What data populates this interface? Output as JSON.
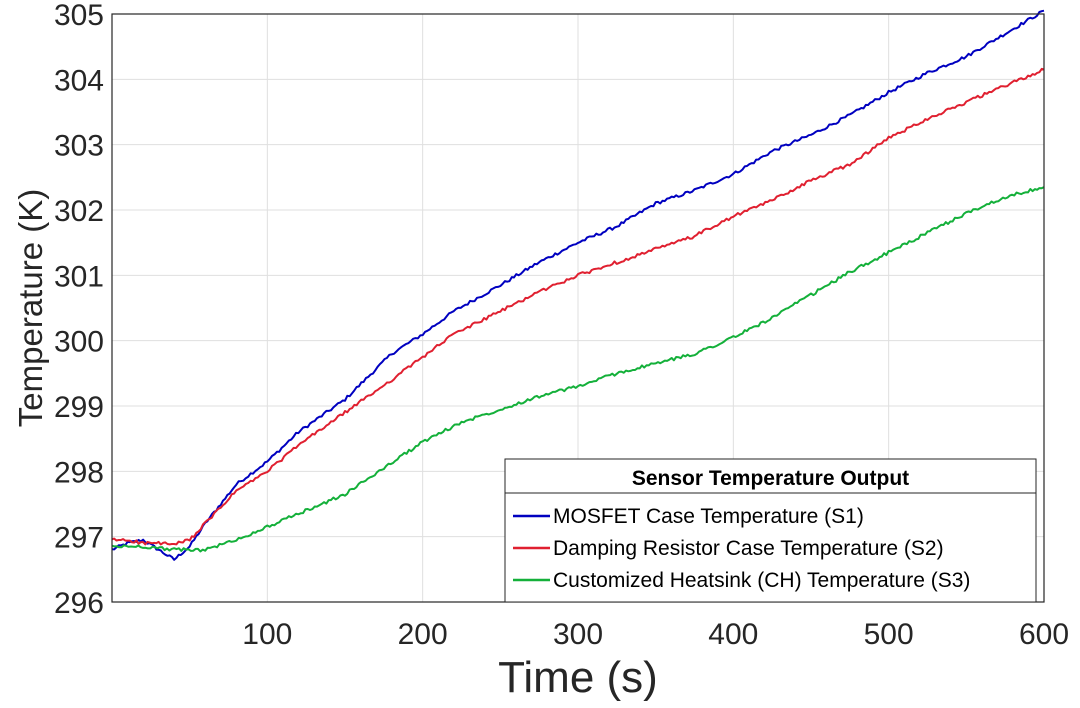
{
  "chart_data": {
    "type": "line",
    "title": "",
    "xlabel": "Time (s)",
    "ylabel": "Temperature (K)",
    "xlim": [
      0,
      600
    ],
    "ylim": [
      296,
      305
    ],
    "xticks": [
      100,
      200,
      300,
      400,
      500,
      600
    ],
    "yticks": [
      296,
      297,
      298,
      299,
      300,
      301,
      302,
      303,
      304,
      305
    ],
    "grid": true,
    "legend": {
      "title": "Sensor Temperature Output",
      "location": "bottom-right"
    },
    "series": [
      {
        "name": "MOSFET Case Temperature (S1)",
        "color": "#0000c0",
        "x": [
          0,
          10,
          20,
          30,
          40,
          50,
          60,
          70,
          80,
          100,
          120,
          150,
          180,
          200,
          220,
          250,
          275,
          300,
          325,
          350,
          375,
          400,
          425,
          450,
          475,
          500,
          525,
          550,
          575,
          600
        ],
        "y": [
          296.8,
          296.9,
          296.95,
          296.8,
          296.65,
          296.85,
          297.2,
          297.5,
          297.8,
          298.15,
          298.6,
          299.1,
          299.8,
          300.1,
          300.45,
          300.85,
          301.2,
          301.5,
          301.75,
          302.1,
          302.3,
          302.55,
          302.9,
          303.15,
          303.45,
          303.8,
          304.1,
          304.35,
          304.7,
          305.05
        ]
      },
      {
        "name": "Damping Resistor Case Temperature (S2)",
        "color": "#e02030",
        "x": [
          0,
          10,
          20,
          30,
          40,
          50,
          60,
          70,
          80,
          100,
          120,
          150,
          180,
          200,
          220,
          250,
          275,
          300,
          325,
          350,
          375,
          400,
          425,
          450,
          475,
          500,
          525,
          550,
          575,
          600
        ],
        "y": [
          296.95,
          296.95,
          296.9,
          296.9,
          296.88,
          296.95,
          297.2,
          297.45,
          297.7,
          298.0,
          298.4,
          298.9,
          299.4,
          299.75,
          300.1,
          300.45,
          300.75,
          301.0,
          301.2,
          301.4,
          301.6,
          301.9,
          302.15,
          302.45,
          302.7,
          303.1,
          303.4,
          303.65,
          303.9,
          304.15
        ]
      },
      {
        "name": "Customized Heatsink (CH) Temperature (S3)",
        "color": "#14b03a",
        "x": [
          0,
          20,
          40,
          60,
          80,
          100,
          120,
          150,
          175,
          200,
          225,
          250,
          275,
          300,
          325,
          350,
          375,
          400,
          425,
          450,
          475,
          500,
          525,
          550,
          575,
          600
        ],
        "y": [
          296.85,
          296.85,
          296.8,
          296.8,
          296.95,
          297.15,
          297.35,
          297.65,
          298.05,
          298.45,
          298.75,
          298.95,
          299.15,
          299.3,
          299.5,
          299.65,
          299.8,
          300.05,
          300.35,
          300.7,
          301.05,
          301.35,
          301.65,
          301.95,
          302.2,
          302.35
        ]
      }
    ]
  }
}
